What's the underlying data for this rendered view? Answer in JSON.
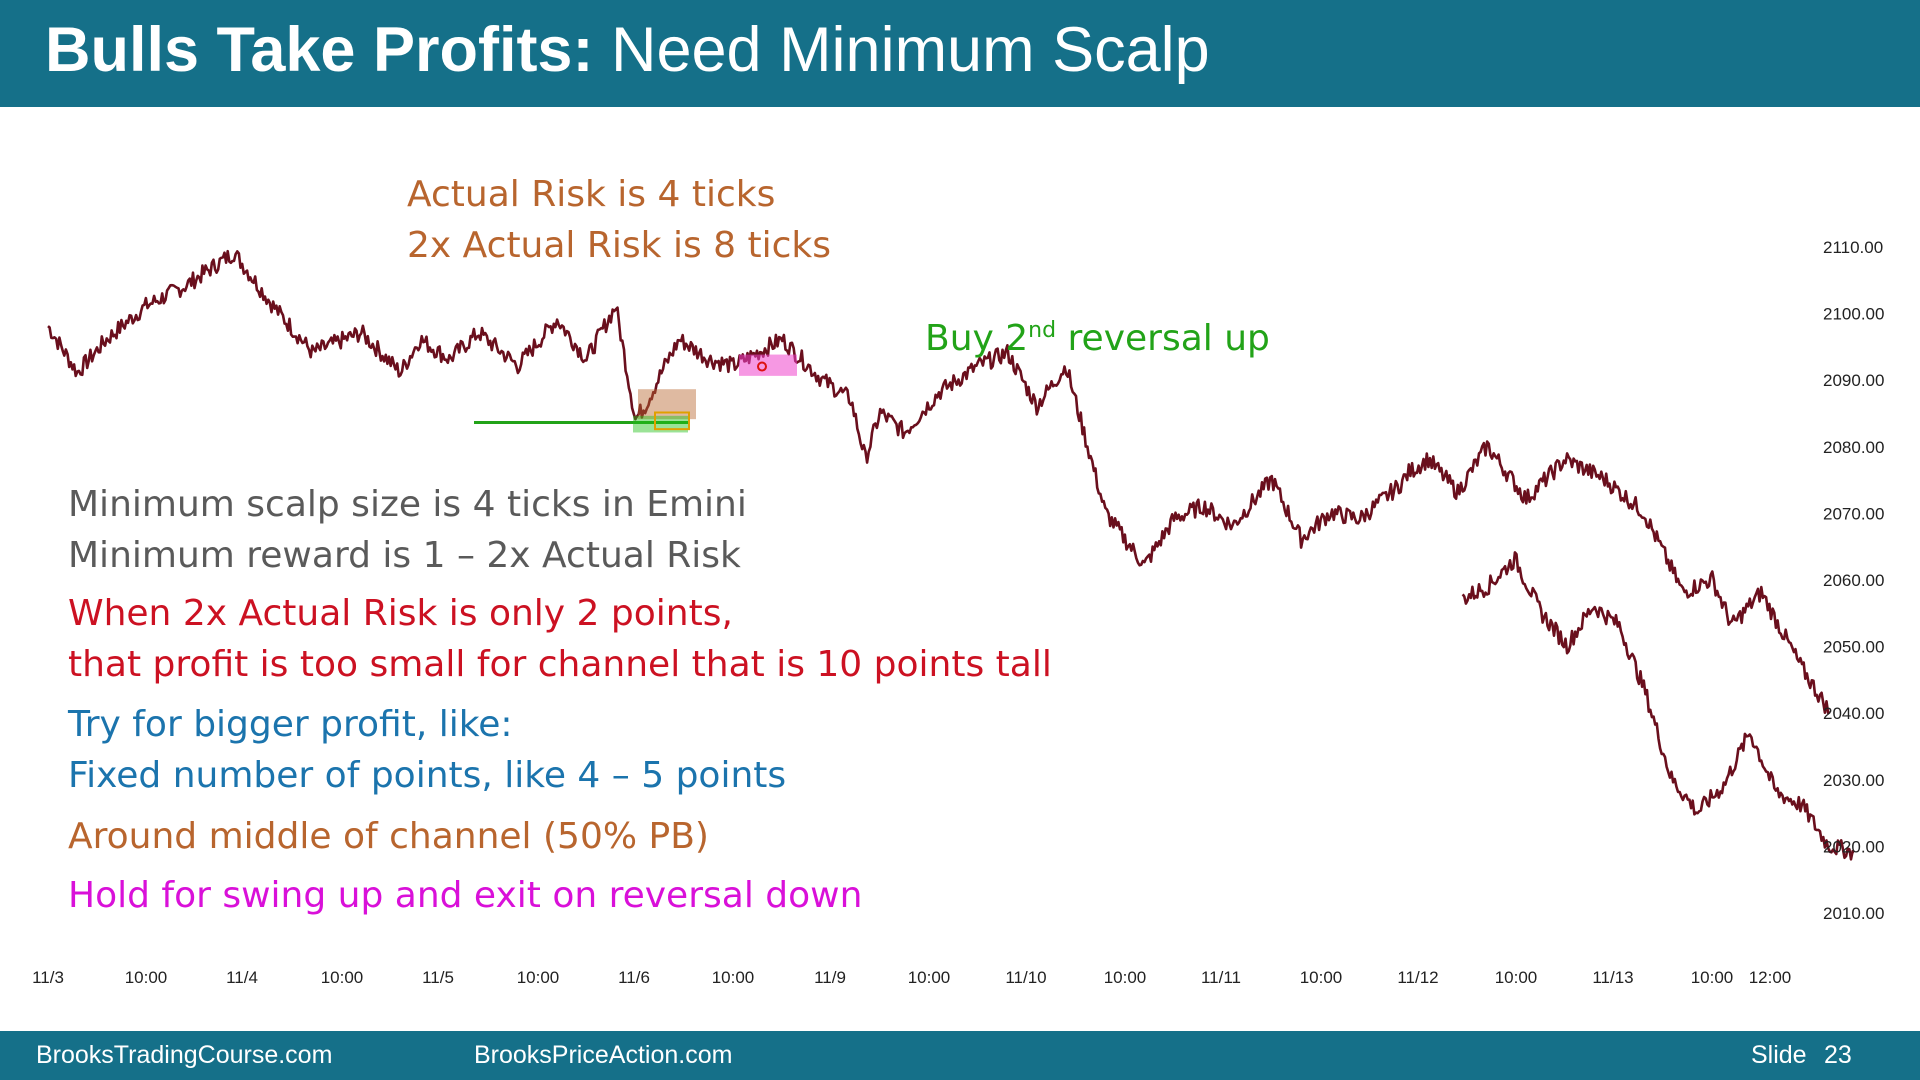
{
  "title": {
    "bold": "Bulls Take Profits:",
    "rest": " Need Minimum Scalp"
  },
  "colors": {
    "header": "#157089",
    "price": "#6a0f1d",
    "orange": "#b8652e",
    "gray": "#5a5a5a",
    "red": "#cc1122",
    "blue": "#1b74ad",
    "magenta": "#d910d9",
    "green": "#22a318"
  },
  "annotations": {
    "risk_line1": "Actual Risk is 4 ticks",
    "risk_line2": "2x Actual Risk is 8 ticks",
    "buy_prefix": "Buy 2",
    "buy_sup": "nd",
    "buy_suffix": " reversal up",
    "min_scalp": "Minimum scalp size is 4 ticks in Emini",
    "min_reward": "Minimum reward is 1 – 2x Actual Risk",
    "red_line1": "When 2x Actual Risk is only 2 points,",
    "red_line2": "that profit is too small for channel that is 10 points tall",
    "blue_line1": "Try for bigger profit, like:",
    "blue_line2": "Fixed number of points, like 4 – 5 points",
    "orange_middle": "Around middle of channel (50% PB)",
    "magenta_hold": "Hold for swing up and exit on reversal down"
  },
  "footer": {
    "site1": "BrooksTradingCourse.com",
    "site2": "BrooksPriceAction.com",
    "slide_label": "Slide",
    "slide_number": "23"
  },
  "chart_data": {
    "type": "line",
    "title": "",
    "xlabel": "",
    "ylabel": "",
    "ylim": [
      2005,
      2115
    ],
    "y_ticks": [
      "2110.00",
      "2100.00",
      "2090.00",
      "2080.00",
      "2070.00",
      "2060.00",
      "2050.00",
      "2040.00",
      "2030.00",
      "2020.00",
      "2010.00"
    ],
    "x_ticks": [
      "11/3",
      "10:00",
      "11/4",
      "10:00",
      "11/5",
      "10:00",
      "11/6",
      "10:00",
      "11/9",
      "10:00",
      "11/10",
      "10:00",
      "11/11",
      "10:00",
      "11/12",
      "10:00",
      "11/13",
      "10:00",
      "12:00"
    ],
    "grid": false,
    "series": [
      {
        "x": [
          0,
          0.3,
          0.6,
          1.0,
          1.4,
          1.9,
          2.3,
          2.7,
          3.2,
          3.6,
          3.8,
          4.1,
          4.4,
          4.8,
          5.2,
          5.5,
          5.8,
          6.0,
          6.1,
          6.3,
          6.45,
          6.75,
          7.0,
          7.5,
          7.9,
          8.2,
          8.35,
          8.5,
          8.75,
          9.1,
          9.5,
          9.8,
          10.1,
          10.4,
          10.8,
          11.2,
          11.5,
          11.8,
          12.1,
          12.5,
          12.8,
          13.1,
          13.4,
          13.8,
          13.9,
          14.1,
          14.4,
          14.7,
          15.1,
          15.5,
          15.9,
          16.3,
          16.7,
          17.0,
          17.2,
          17.5,
          17.9,
          18.2
        ],
        "y": [
          2098,
          2091,
          2096,
          2101,
          2104,
          2109,
          2101,
          2094,
          2097,
          2091,
          2096,
          2093,
          2097,
          2092,
          2099,
          2093,
          2101,
          2084,
          2086,
          2092,
          2096,
          2093,
          2092,
          2096,
          2090,
          2087,
          2078,
          2085,
          2082,
          2088,
          2092,
          2094,
          2086,
          2092,
          2070,
          2062,
          2069,
          2071,
          2068,
          2075,
          2066,
          2070,
          2069,
          2074,
          2076,
          2078,
          2073,
          2080,
          2072,
          2078,
          2075,
          2070,
          2058,
          2060,
          2053,
          2058,
          2047,
          2040
        ],
        "y_after_gap": [
          2057,
          2059,
          2063,
          2055,
          2050,
          2056,
          2053,
          2043,
          2030,
          2025,
          2029,
          2037,
          2028,
          2026,
          2020,
          2019
        ]
      }
    ],
    "price_path_description_only": false,
    "markers": [
      {
        "label": "support_line",
        "x": [
          4.7,
          7.4
        ],
        "y": 2083.5
      },
      {
        "label": "entry_box",
        "x": [
          6.95,
          7.1
        ],
        "y": [
          2082,
          2088
        ]
      },
      {
        "label": "buy_2nd_reversal_box",
        "x": [
          7.6,
          8.15
        ],
        "y": [
          2090.5,
          2094
        ]
      }
    ]
  }
}
